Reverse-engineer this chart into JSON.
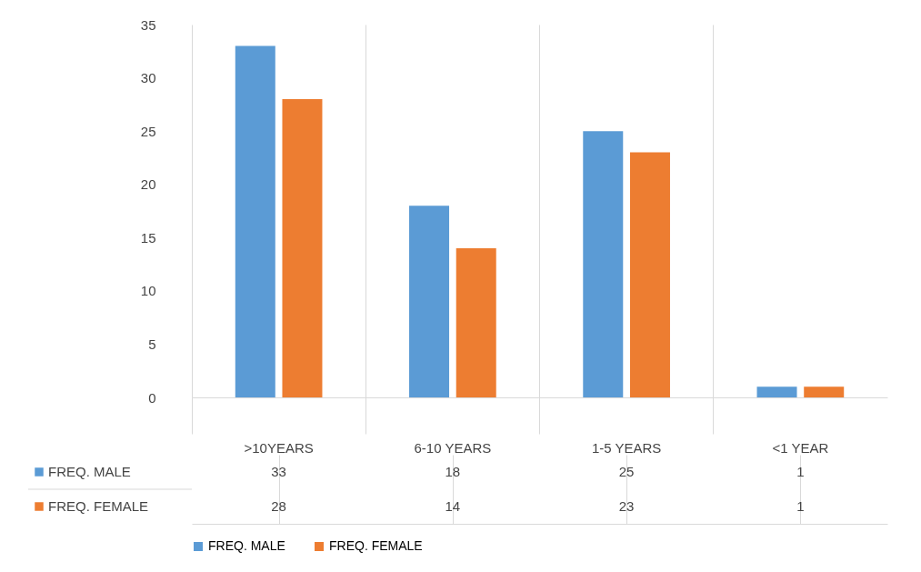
{
  "chart_data": {
    "type": "bar",
    "categories": [
      ">10YEARS",
      "6-10 YEARS",
      "1-5 YEARS",
      "<1 YEAR"
    ],
    "series": [
      {
        "name": "FREQ. MALE",
        "color": "#5b9bd5",
        "values": [
          33,
          18,
          25,
          1
        ]
      },
      {
        "name": "FREQ. FEMALE",
        "color": "#ed7d31",
        "values": [
          28,
          14,
          23,
          1
        ]
      }
    ],
    "ylim": [
      0,
      35
    ],
    "yticks": [
      0,
      5,
      10,
      15,
      20,
      25,
      30,
      35
    ],
    "grid": false,
    "legend": "bottom",
    "data_labels": true
  }
}
